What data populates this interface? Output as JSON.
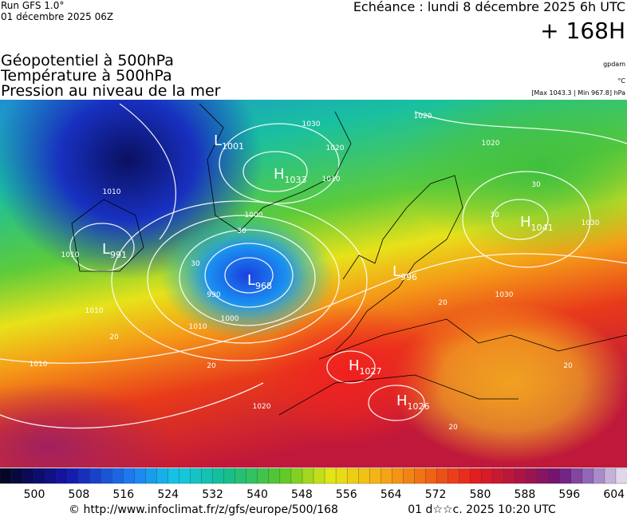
{
  "header": {
    "run": "Run GFS 1.0°",
    "run_date": "01 décembre 2025 06Z",
    "valid": "Echéance : lundi 8 décembre 2025 6h UTC",
    "lead": "+ 168H",
    "titles": [
      "Géopotentiel à 500hPa",
      "Température à 500hPa",
      "Pression au niveau de la mer"
    ],
    "units": [
      "gpdam",
      "°C",
      "[Max 1043.3 | Min 967.8] hPa"
    ]
  },
  "centers": [
    {
      "letter": "L",
      "value": "1001"
    },
    {
      "letter": "H",
      "value": "1033"
    },
    {
      "letter": "L",
      "value": "991"
    },
    {
      "letter": "L",
      "value": "968"
    },
    {
      "letter": "L",
      "value": "996"
    },
    {
      "letter": "H",
      "value": "1041"
    },
    {
      "letter": "H",
      "value": "1027"
    },
    {
      "letter": "H",
      "value": "1026"
    }
  ],
  "contour_labels": [
    "1030",
    "1020",
    "1010",
    "1010",
    "1020",
    "1020",
    "1000",
    "30",
    "30",
    "990",
    "1000",
    "1010",
    "1010",
    "1010",
    "1010",
    "20",
    "20",
    "30",
    "1030",
    "1030",
    "20",
    "20",
    "1020",
    "30",
    "20"
  ],
  "colorbar": {
    "labels": [
      "500",
      "508",
      "516",
      "524",
      "532",
      "540",
      "548",
      "556",
      "564",
      "572",
      "580",
      "588",
      "596",
      "604"
    ]
  },
  "footer": {
    "source": "© http://www.infoclimat.fr/z/gfs/europe/500/168",
    "generated": "01 d☆☆c. 2025 10:20 UTC"
  }
}
